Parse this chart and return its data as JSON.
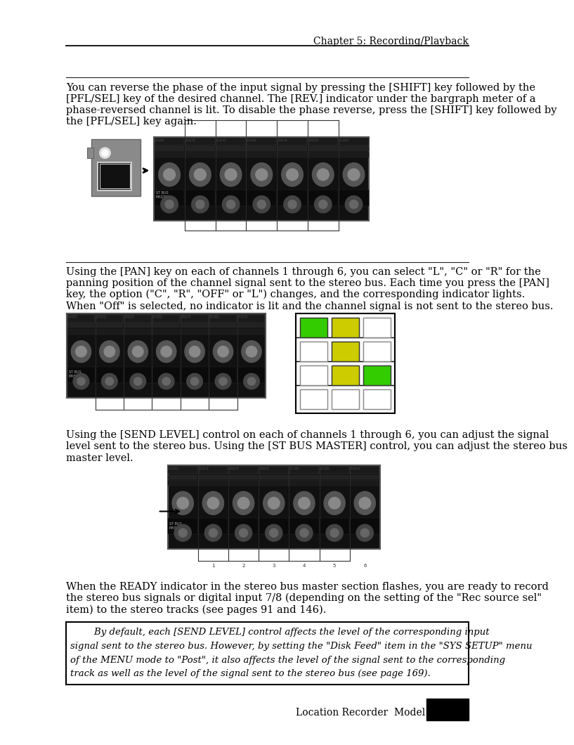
{
  "page_title": "Chapter 5: Recording/Playback",
  "footer_text": "Location Recorder  Model PD606",
  "para1": "You can reverse the phase of the input signal by pressing the [SHIFT] key followed by the\n[PFL/SEL] key of the desired channel. The [REV.] indicator under the bargraph meter of a\nphase-reversed channel is lit. To disable the phase reverse, press the [SHIFT] key followed by\nthe [PFL/SEL] key again.",
  "para2": "Using the [PAN] key on each of channels 1 through 6, you can select \"L\", \"C\" or \"R\" for the\npanning position of the channel signal sent to the stereo bus. Each time you press the [PAN]\nkey, the option (\"C\", \"R\", \"OFF\" or \"L\") changes, and the corresponding indicator lights.\nWhen \"Off\" is selected, no indicator is lit and the channel signal is not sent to the stereo bus.",
  "para3": "Using the [SEND LEVEL] control on each of channels 1 through 6, you can adjust the signal\nlevel sent to the stereo bus. Using the [ST BUS MASTER] control, you can adjust the stereo bus\nmaster level.",
  "para4": "When the READY indicator in the stereo bus master section flashes, you are ready to record\nthe stereo bus signals or digital input 7/8 (depending on the setting of the \"Rec source sel\"\nitem) to the stereo tracks (see pages 91 and 146).",
  "note_line1": "        By default, each [SEND LEVEL] control affects the level of the corresponding input",
  "note_line2": "signal sent to the stereo bus. However, by setting the \"Disk Feed\" item in the \"SYS SETUP\" menu",
  "note_line3": "of the MENU mode to \"Post\", it also affects the level of the signal sent to the corresponding",
  "note_line4": "track as well as the level of the signal sent to the stereo bus (see page 169).",
  "bg_color": "#ffffff",
  "text_color": "#000000",
  "device_color": "#111111",
  "indicator_green": "#33cc00",
  "indicator_yellow": "#cccc00",
  "indicator_off": "#ffffff",
  "led_grid_section2": [
    [
      "green",
      "yellow",
      "none"
    ],
    [
      "none",
      "yellow",
      "none"
    ],
    [
      "none",
      "yellow",
      "green"
    ],
    [
      "none",
      "none",
      "none"
    ]
  ]
}
